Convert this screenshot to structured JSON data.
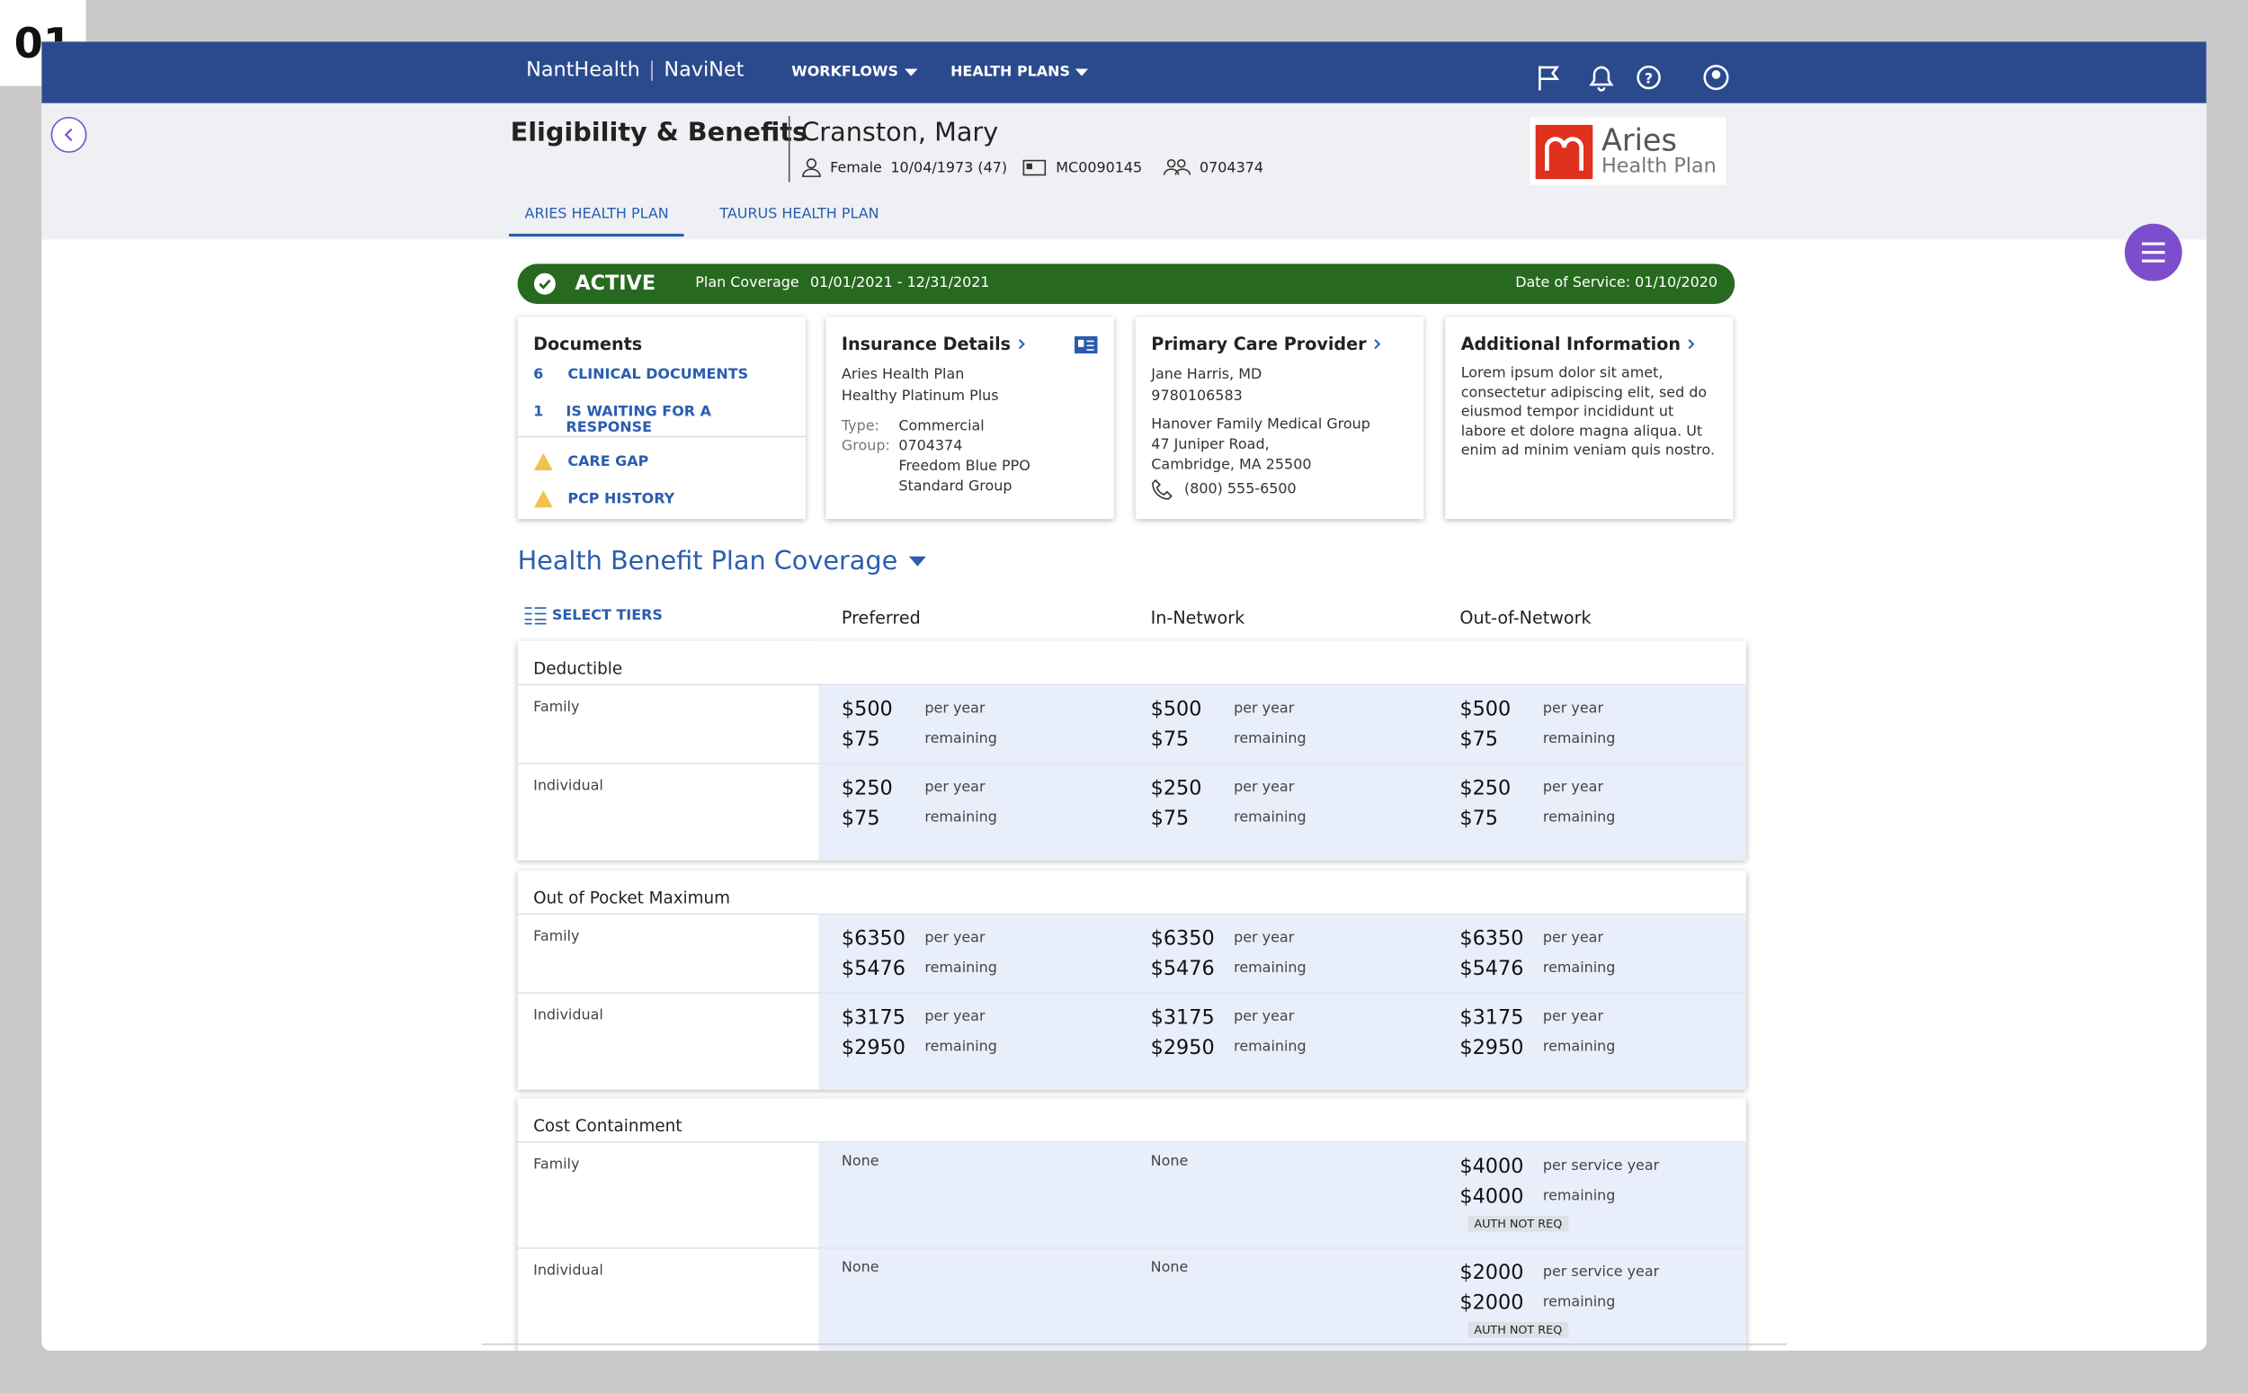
{
  "badge": "01",
  "nav": {
    "brand": "NantHealth",
    "product": "NaviNet",
    "menus": [
      "WORKFLOWS",
      "HEALTH PLANS"
    ]
  },
  "header": {
    "title": "Eligibility & Benefits",
    "patient": "Cranston, Mary",
    "gender": "Female",
    "dob": "10/04/1973 (47)",
    "member_id": "MC0090145",
    "group_id": "0704374",
    "logo": {
      "name": "Aries",
      "sub": "Health Plan"
    }
  },
  "tabs": [
    "ARIES HEALTH PLAN",
    "TAURUS HEALTH PLAN"
  ],
  "status": {
    "label": "ACTIVE",
    "coverage_label": "Plan Coverage",
    "coverage": "01/01/2021 - 12/31/2021",
    "date_of_service": "Date of Service: 01/10/2020"
  },
  "cards": {
    "documents": {
      "title": "Documents",
      "items": [
        {
          "count": "6",
          "label": "CLINICAL DOCUMENTS"
        },
        {
          "count": "1",
          "label": "IS WAITING FOR A RESPONSE"
        }
      ],
      "alerts": [
        "CARE GAP",
        "PCP HISTORY"
      ]
    },
    "insurance": {
      "title": "Insurance Details",
      "lines": [
        "Aries Health Plan",
        "Healthy Platinum Plus"
      ],
      "fields": [
        {
          "label": "Type:",
          "values": [
            "Commercial"
          ]
        },
        {
          "label": "Group:",
          "values": [
            "0704374",
            "Freedom Blue PPO Standard Group"
          ]
        }
      ]
    },
    "pcp": {
      "title": "Primary Care Provider",
      "lines": [
        "Jane Harris, MD",
        "9780106583"
      ],
      "address": [
        "Hanover Family Medical Group",
        "47 Juniper Road,",
        "Cambridge, MA 25500"
      ],
      "phone": "(800) 555-6500"
    },
    "additional": {
      "title": "Additional Information",
      "text": "Lorem ipsum dolor sit amet, consectetur adipiscing elit, sed do eiusmod tempor incididunt ut labore et dolore magna aliqua. Ut enim ad minim veniam quis nostro."
    }
  },
  "coverage": {
    "title": "Health Benefit Plan Coverage",
    "select": "SELECT TIERS",
    "columns": [
      "Preferred",
      "In-Network",
      "Out-of-Network"
    ],
    "sections": [
      {
        "name": "Deductible",
        "rows": [
          {
            "label": "Family",
            "cells": [
              {
                "amounts": [
                  {
                    "value": "$500",
                    "note": "per year"
                  },
                  {
                    "value": "$75",
                    "note": "remaining"
                  }
                ]
              },
              {
                "amounts": [
                  {
                    "value": "$500",
                    "note": "per year"
                  },
                  {
                    "value": "$75",
                    "note": "remaining"
                  }
                ]
              },
              {
                "amounts": [
                  {
                    "value": "$500",
                    "note": "per year"
                  },
                  {
                    "value": "$75",
                    "note": "remaining"
                  }
                ]
              }
            ]
          },
          {
            "label": "Individual",
            "cells": [
              {
                "amounts": [
                  {
                    "value": "$250",
                    "note": "per year"
                  },
                  {
                    "value": "$75",
                    "note": "remaining"
                  }
                ]
              },
              {
                "amounts": [
                  {
                    "value": "$250",
                    "note": "per year"
                  },
                  {
                    "value": "$75",
                    "note": "remaining"
                  }
                ]
              },
              {
                "amounts": [
                  {
                    "value": "$250",
                    "note": "per year"
                  },
                  {
                    "value": "$75",
                    "note": "remaining"
                  }
                ]
              }
            ]
          }
        ]
      },
      {
        "name": "Out of Pocket Maximum",
        "rows": [
          {
            "label": "Family",
            "cells": [
              {
                "amounts": [
                  {
                    "value": "$6350",
                    "note": "per year"
                  },
                  {
                    "value": "$5476",
                    "note": "remaining"
                  }
                ]
              },
              {
                "amounts": [
                  {
                    "value": "$6350",
                    "note": "per year"
                  },
                  {
                    "value": "$5476",
                    "note": "remaining"
                  }
                ]
              },
              {
                "amounts": [
                  {
                    "value": "$6350",
                    "note": "per year"
                  },
                  {
                    "value": "$5476",
                    "note": "remaining"
                  }
                ]
              }
            ]
          },
          {
            "label": "Individual",
            "cells": [
              {
                "amounts": [
                  {
                    "value": "$3175",
                    "note": "per year"
                  },
                  {
                    "value": "$2950",
                    "note": "remaining"
                  }
                ]
              },
              {
                "amounts": [
                  {
                    "value": "$3175",
                    "note": "per year"
                  },
                  {
                    "value": "$2950",
                    "note": "remaining"
                  }
                ]
              },
              {
                "amounts": [
                  {
                    "value": "$3175",
                    "note": "per year"
                  },
                  {
                    "value": "$2950",
                    "note": "remaining"
                  }
                ]
              }
            ]
          }
        ]
      },
      {
        "name": "Cost Containment",
        "rows": [
          {
            "label": "Family",
            "cells": [
              {
                "text": "None"
              },
              {
                "text": "None"
              },
              {
                "amounts": [
                  {
                    "value": "$4000",
                    "note": "per service year"
                  },
                  {
                    "value": "$4000",
                    "note": "remaining"
                  }
                ],
                "tag": "AUTH NOT REQ"
              }
            ]
          },
          {
            "label": "Individual",
            "cells": [
              {
                "text": "None"
              },
              {
                "text": "None"
              },
              {
                "amounts": [
                  {
                    "value": "$2000",
                    "note": "per service year"
                  },
                  {
                    "value": "$2000",
                    "note": "remaining"
                  }
                ],
                "tag": "AUTH NOT REQ"
              }
            ]
          }
        ]
      }
    ]
  }
}
